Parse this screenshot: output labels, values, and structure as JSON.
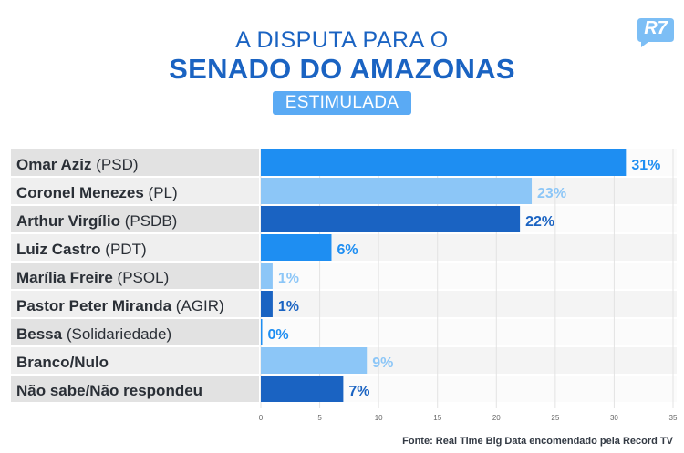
{
  "header": {
    "title_line1": "A DISPUTA PARA O",
    "title_line2": "SENADO DO AMAZONAS",
    "badge": "ESTIMULADA",
    "logo": "R7"
  },
  "source": "Fonte: Real Time Big Data encomendado pela Record TV",
  "chart_data": {
    "type": "bar",
    "orientation": "horizontal",
    "categories": [
      {
        "name": "Omar Aziz",
        "party": "(PSD)"
      },
      {
        "name": "Coronel Menezes",
        "party": "(PL)"
      },
      {
        "name": "Arthur Virgílio",
        "party": "(PSDB)"
      },
      {
        "name": "Luiz Castro",
        "party": "(PDT)"
      },
      {
        "name": "Marília Freire",
        "party": "(PSOL)"
      },
      {
        "name": "Pastor Peter Miranda",
        "party": "(AGIR)"
      },
      {
        "name": "Bessa",
        "party": "(Solidariedade)"
      },
      {
        "name": "Branco/Nulo",
        "party": ""
      },
      {
        "name": "Não sabe/Não respondeu",
        "party": ""
      }
    ],
    "values": [
      31,
      23,
      22,
      6,
      1,
      1,
      0,
      9,
      7
    ],
    "data_labels": [
      "31%",
      "23%",
      "22%",
      "6%",
      "1%",
      "1%",
      "0%",
      "9%",
      "7%"
    ],
    "bar_colors": [
      "#1e8ef2",
      "#8cc6f7",
      "#1a63c2",
      "#1e8ef2",
      "#8cc6f7",
      "#1a63c2",
      "#1e8ef2",
      "#8cc6f7",
      "#1a63c2"
    ],
    "xlim": [
      0,
      35
    ],
    "xticks": [
      0,
      5,
      10,
      15,
      20,
      25,
      30,
      35
    ],
    "grid": true
  }
}
